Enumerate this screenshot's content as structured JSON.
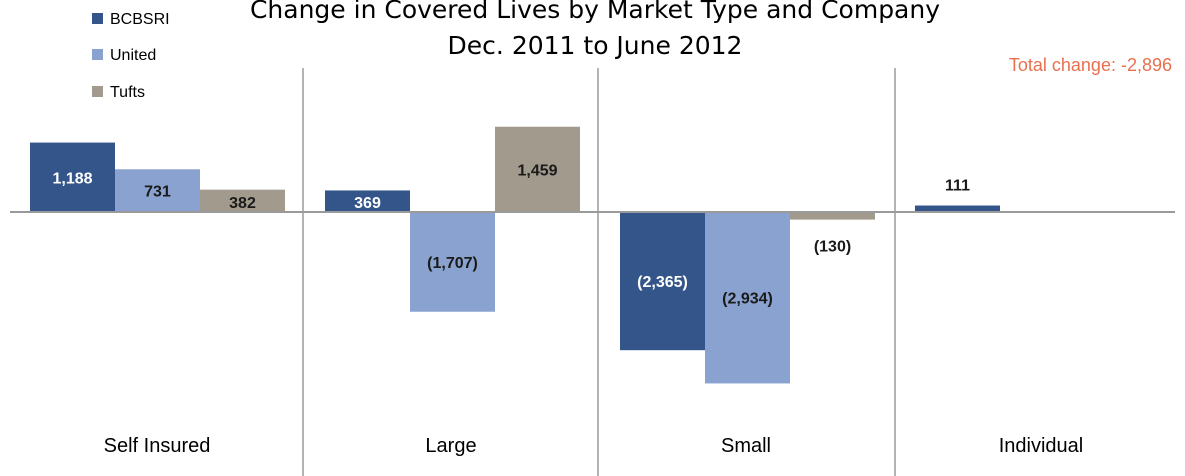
{
  "chart_data": {
    "type": "bar",
    "title": "Change in Covered Lives by Market Type and Company",
    "subtitle": "Dec. 2011 to June 2012",
    "annotation": "Total change: -2,896",
    "categories": [
      "Self Insured",
      "Large",
      "Small",
      "Individual"
    ],
    "series": [
      {
        "name": "BCBSRI",
        "color": "#34558a",
        "values": [
          1188,
          369,
          -2365,
          111
        ],
        "labels": [
          "1,188",
          "369",
          "(2,365)",
          "111"
        ]
      },
      {
        "name": "United",
        "color": "#8aa2cf",
        "values": [
          731,
          -1707,
          -2934,
          null
        ],
        "labels": [
          "731",
          "(1,707)",
          "(2,934)",
          ""
        ]
      },
      {
        "name": "Tufts",
        "color": "#a19a8d",
        "values": [
          382,
          1459,
          -130,
          null
        ],
        "labels": [
          "382",
          "1,459",
          "(130)",
          ""
        ]
      }
    ],
    "ylim": [
      -4200,
      1600
    ],
    "grid": false,
    "legend_position": "top-left",
    "colors": {
      "annotation": "#e8704f",
      "axis": "#9a9a9a"
    }
  }
}
